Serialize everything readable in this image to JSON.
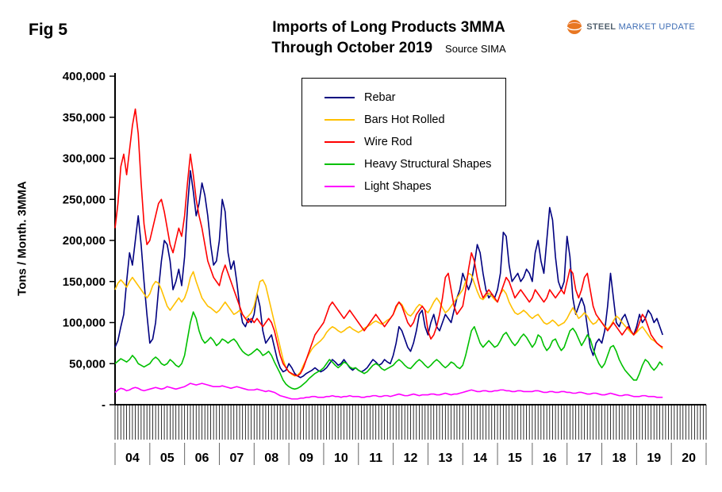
{
  "figure_label": "Fig 5",
  "title": {
    "line1": "Imports of Long Products 3MMA",
    "line2": "Through October 2019",
    "source": "Source SIMA"
  },
  "logo": {
    "text_primary": "STEEL",
    "text_secondary": "MARKET UPDATE",
    "icon_color": "#E87722"
  },
  "chart_data": {
    "type": "line",
    "title": "Imports of Long Products 3MMA Through October 2019",
    "xlabel": "",
    "ylabel": "Tons / Month. 3MMA",
    "ylim": [
      0,
      400000
    ],
    "y_tick_step": 50000,
    "y_tick_labels": [
      "400,000",
      "350,000",
      "300,000",
      "250,000",
      "200,000",
      "150,000",
      "100,000",
      "50,000",
      "-"
    ],
    "x_year_labels": [
      "04",
      "05",
      "06",
      "07",
      "08",
      "09",
      "10",
      "11",
      "12",
      "13",
      "14",
      "15",
      "16",
      "17",
      "18",
      "19",
      "20"
    ],
    "x_months_per_year": 12,
    "x_total_months": 204,
    "x_start": "2004-01",
    "x_end_data": "2019-10",
    "grid": false,
    "legend_position": "upper-center-left",
    "series": [
      {
        "name": "Rebar",
        "color": "#000080",
        "values": [
          70000,
          78000,
          95000,
          110000,
          150000,
          185000,
          170000,
          200000,
          230000,
          195000,
          150000,
          110000,
          75000,
          80000,
          100000,
          140000,
          175000,
          200000,
          195000,
          175000,
          140000,
          150000,
          165000,
          145000,
          180000,
          240000,
          285000,
          260000,
          230000,
          245000,
          270000,
          255000,
          230000,
          195000,
          170000,
          175000,
          200000,
          250000,
          235000,
          185000,
          165000,
          175000,
          150000,
          120000,
          100000,
          95000,
          105000,
          100000,
          110000,
          135000,
          120000,
          90000,
          75000,
          80000,
          85000,
          70000,
          55000,
          45000,
          40000,
          42000,
          50000,
          45000,
          38000,
          35000,
          33000,
          35000,
          38000,
          40000,
          42000,
          45000,
          42000,
          40000,
          42000,
          45000,
          50000,
          55000,
          52000,
          48000,
          50000,
          55000,
          50000,
          45000,
          42000,
          45000,
          42000,
          40000,
          42000,
          45000,
          50000,
          55000,
          52000,
          48000,
          50000,
          55000,
          52000,
          50000,
          60000,
          75000,
          95000,
          90000,
          80000,
          70000,
          65000,
          75000,
          90000,
          110000,
          115000,
          95000,
          85000,
          100000,
          110000,
          95000,
          90000,
          100000,
          110000,
          105000,
          100000,
          115000,
          130000,
          140000,
          160000,
          150000,
          140000,
          150000,
          170000,
          195000,
          185000,
          160000,
          140000,
          130000,
          135000,
          130000,
          140000,
          160000,
          210000,
          205000,
          170000,
          150000,
          155000,
          160000,
          150000,
          155000,
          165000,
          160000,
          150000,
          185000,
          200000,
          175000,
          160000,
          200000,
          240000,
          225000,
          180000,
          150000,
          140000,
          150000,
          205000,
          180000,
          130000,
          110000,
          120000,
          130000,
          120000,
          95000,
          70000,
          60000,
          75000,
          80000,
          75000,
          90000,
          120000,
          160000,
          130000,
          100000,
          95000,
          105000,
          110000,
          100000,
          90000,
          85000,
          95000,
          110000,
          100000,
          105000,
          115000,
          110000,
          100000,
          105000,
          95000,
          85000
        ]
      },
      {
        "name": "Bars Hot Rolled",
        "color": "#FFC000",
        "values": [
          140000,
          148000,
          152000,
          148000,
          143000,
          150000,
          155000,
          150000,
          145000,
          140000,
          135000,
          130000,
          135000,
          145000,
          150000,
          148000,
          140000,
          130000,
          120000,
          115000,
          120000,
          125000,
          130000,
          125000,
          130000,
          140000,
          155000,
          162000,
          150000,
          140000,
          130000,
          125000,
          120000,
          118000,
          115000,
          112000,
          115000,
          120000,
          125000,
          120000,
          115000,
          110000,
          112000,
          115000,
          110000,
          105000,
          108000,
          112000,
          120000,
          135000,
          150000,
          152000,
          145000,
          130000,
          115000,
          100000,
          85000,
          70000,
          55000,
          45000,
          40000,
          37000,
          35000,
          36000,
          40000,
          48000,
          55000,
          62000,
          68000,
          72000,
          75000,
          78000,
          82000,
          88000,
          92000,
          95000,
          93000,
          90000,
          88000,
          90000,
          93000,
          95000,
          92000,
          90000,
          88000,
          90000,
          93000,
          95000,
          97000,
          100000,
          102000,
          100000,
          98000,
          100000,
          103000,
          105000,
          110000,
          118000,
          125000,
          122000,
          115000,
          110000,
          108000,
          112000,
          118000,
          122000,
          120000,
          115000,
          112000,
          118000,
          125000,
          130000,
          125000,
          118000,
          112000,
          115000,
          120000,
          125000,
          130000,
          135000,
          140000,
          150000,
          160000,
          158000,
          148000,
          138000,
          130000,
          128000,
          132000,
          136000,
          132000,
          128000,
          125000,
          135000,
          140000,
          135000,
          125000,
          118000,
          112000,
          110000,
          112000,
          115000,
          112000,
          108000,
          105000,
          108000,
          110000,
          105000,
          100000,
          98000,
          100000,
          103000,
          100000,
          96000,
          98000,
          100000,
          105000,
          112000,
          118000,
          112000,
          105000,
          108000,
          112000,
          108000,
          102000,
          98000,
          100000,
          105000,
          100000,
          96000,
          92000,
          96000,
          102000,
          108000,
          105000,
          100000,
          96000,
          92000,
          88000,
          85000,
          88000,
          92000,
          95000,
          90000,
          85000,
          80000,
          78000,
          75000,
          72000,
          68000
        ]
      },
      {
        "name": "Wire Rod",
        "color": "#FF0000",
        "values": [
          215000,
          245000,
          290000,
          305000,
          280000,
          310000,
          340000,
          360000,
          330000,
          270000,
          220000,
          195000,
          200000,
          215000,
          230000,
          245000,
          250000,
          235000,
          215000,
          195000,
          185000,
          200000,
          215000,
          205000,
          230000,
          270000,
          305000,
          280000,
          250000,
          230000,
          215000,
          195000,
          175000,
          165000,
          155000,
          150000,
          145000,
          160000,
          170000,
          160000,
          150000,
          140000,
          130000,
          120000,
          110000,
          105000,
          100000,
          105000,
          100000,
          105000,
          100000,
          95000,
          100000,
          105000,
          100000,
          90000,
          75000,
          60000,
          50000,
          45000,
          40000,
          38000,
          36000,
          35000,
          38000,
          45000,
          55000,
          65000,
          75000,
          85000,
          90000,
          95000,
          100000,
          110000,
          120000,
          125000,
          120000,
          115000,
          110000,
          105000,
          110000,
          115000,
          110000,
          105000,
          100000,
          95000,
          90000,
          95000,
          100000,
          105000,
          110000,
          105000,
          100000,
          95000,
          100000,
          105000,
          110000,
          120000,
          125000,
          120000,
          110000,
          100000,
          95000,
          100000,
          110000,
          115000,
          120000,
          115000,
          90000,
          80000,
          85000,
          95000,
          110000,
          130000,
          155000,
          160000,
          140000,
          120000,
          110000,
          115000,
          120000,
          140000,
          165000,
          185000,
          175000,
          155000,
          140000,
          130000,
          135000,
          140000,
          135000,
          130000,
          125000,
          135000,
          145000,
          155000,
          150000,
          140000,
          130000,
          135000,
          140000,
          135000,
          130000,
          125000,
          130000,
          140000,
          135000,
          130000,
          125000,
          130000,
          140000,
          135000,
          130000,
          135000,
          140000,
          135000,
          150000,
          165000,
          160000,
          140000,
          130000,
          140000,
          155000,
          160000,
          140000,
          120000,
          110000,
          105000,
          100000,
          95000,
          90000,
          95000,
          100000,
          95000,
          90000,
          85000,
          90000,
          95000,
          90000,
          85000,
          90000,
          100000,
          110000,
          105000,
          95000,
          85000,
          80000,
          75000,
          72000,
          70000
        ]
      },
      {
        "name": "Heavy Structural Shapes",
        "color": "#00C000",
        "values": [
          50000,
          53000,
          56000,
          54000,
          52000,
          55000,
          60000,
          56000,
          50000,
          48000,
          46000,
          48000,
          50000,
          55000,
          58000,
          55000,
          50000,
          48000,
          50000,
          55000,
          52000,
          48000,
          46000,
          50000,
          60000,
          80000,
          100000,
          113000,
          105000,
          90000,
          80000,
          75000,
          78000,
          82000,
          78000,
          72000,
          75000,
          80000,
          78000,
          75000,
          78000,
          80000,
          76000,
          70000,
          65000,
          62000,
          60000,
          62000,
          65000,
          68000,
          65000,
          60000,
          62000,
          65000,
          60000,
          52000,
          45000,
          38000,
          30000,
          25000,
          22000,
          20000,
          19000,
          20000,
          22000,
          25000,
          28000,
          32000,
          35000,
          38000,
          40000,
          42000,
          45000,
          50000,
          55000,
          52000,
          48000,
          45000,
          48000,
          52000,
          50000,
          46000,
          44000,
          45000,
          42000,
          40000,
          38000,
          40000,
          44000,
          48000,
          50000,
          48000,
          44000,
          42000,
          44000,
          46000,
          48000,
          52000,
          55000,
          52000,
          48000,
          45000,
          44000,
          48000,
          52000,
          55000,
          52000,
          48000,
          45000,
          48000,
          52000,
          55000,
          52000,
          48000,
          45000,
          48000,
          52000,
          50000,
          46000,
          44000,
          48000,
          60000,
          75000,
          90000,
          95000,
          85000,
          75000,
          70000,
          74000,
          78000,
          74000,
          70000,
          72000,
          78000,
          85000,
          88000,
          82000,
          76000,
          72000,
          76000,
          82000,
          86000,
          82000,
          76000,
          70000,
          75000,
          85000,
          82000,
          72000,
          66000,
          70000,
          78000,
          80000,
          72000,
          66000,
          70000,
          80000,
          90000,
          93000,
          88000,
          80000,
          72000,
          78000,
          85000,
          80000,
          68000,
          58000,
          50000,
          45000,
          50000,
          60000,
          70000,
          72000,
          65000,
          55000,
          48000,
          42000,
          38000,
          34000,
          30000,
          30000,
          38000,
          48000,
          55000,
          52000,
          46000,
          42000,
          46000,
          52000,
          48000
        ]
      },
      {
        "name": "Light Shapes",
        "color": "#FF00FF",
        "values": [
          15000,
          18000,
          20000,
          19000,
          17000,
          18000,
          20000,
          21000,
          20000,
          18000,
          17000,
          18000,
          19000,
          20000,
          21000,
          20000,
          19000,
          20000,
          22000,
          21000,
          20000,
          19000,
          20000,
          21000,
          22000,
          24000,
          26000,
          25000,
          24000,
          25000,
          26000,
          25000,
          24000,
          23000,
          22000,
          22000,
          22000,
          23000,
          22000,
          21000,
          20000,
          21000,
          22000,
          21000,
          20000,
          19000,
          18000,
          18000,
          18000,
          19000,
          18000,
          17000,
          16000,
          17000,
          16000,
          15000,
          13000,
          11000,
          10000,
          9000,
          8000,
          7000,
          7000,
          7000,
          8000,
          8000,
          9000,
          9000,
          10000,
          10000,
          9000,
          9000,
          9000,
          10000,
          10000,
          11000,
          10000,
          10000,
          9000,
          10000,
          10000,
          11000,
          10000,
          10000,
          10000,
          9000,
          9000,
          10000,
          10000,
          11000,
          11000,
          10000,
          10000,
          11000,
          11000,
          10000,
          11000,
          12000,
          13000,
          12000,
          11000,
          11000,
          12000,
          13000,
          12000,
          11000,
          12000,
          12000,
          12000,
          13000,
          13000,
          12000,
          12000,
          13000,
          14000,
          13000,
          12000,
          13000,
          13000,
          14000,
          15000,
          16000,
          17000,
          18000,
          17000,
          16000,
          16000,
          17000,
          17000,
          16000,
          16000,
          17000,
          17000,
          18000,
          18000,
          17000,
          17000,
          16000,
          16000,
          17000,
          17000,
          16000,
          16000,
          16000,
          16000,
          17000,
          17000,
          16000,
          15000,
          15000,
          16000,
          16000,
          15000,
          15000,
          16000,
          16000,
          15000,
          15000,
          14000,
          14000,
          15000,
          15000,
          14000,
          13000,
          13000,
          14000,
          14000,
          13000,
          12000,
          12000,
          13000,
          14000,
          13000,
          12000,
          11000,
          11000,
          12000,
          12000,
          11000,
          10000,
          10000,
          10000,
          11000,
          11000,
          10000,
          10000,
          10000,
          9000,
          9000,
          9000
        ]
      }
    ]
  }
}
